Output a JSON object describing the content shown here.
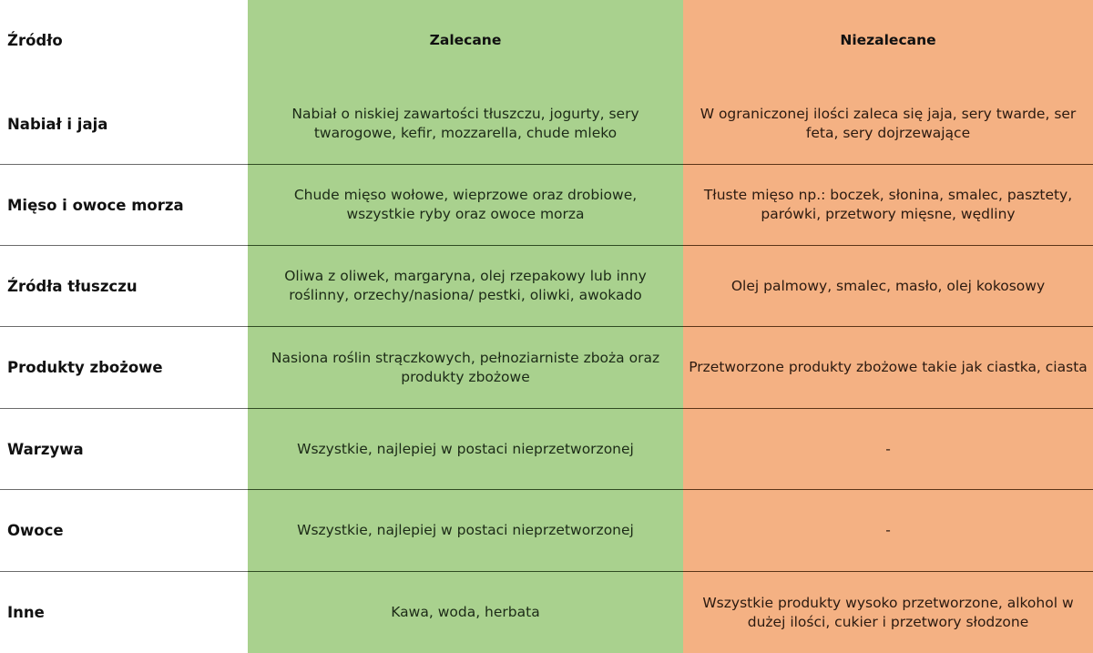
{
  "colors": {
    "source_column_bg": "#ffffff",
    "recommended_column_bg": "#a9d18e",
    "not_recommended_column_bg": "#f4b183"
  },
  "header": {
    "source": "Źródło",
    "recommended": "Zalecane",
    "not_recommended": "Niezalecane"
  },
  "rows": [
    {
      "source": "Nabiał i jaja",
      "recommended": "Nabiał o niskiej zawartości tłuszczu, jogurty, sery twarogowe, kefir, mozzarella, chude mleko",
      "not_recommended": "W ograniczonej ilości zaleca się jaja, sery twarde, ser feta, sery dojrzewające"
    },
    {
      "source": "Mięso i owoce morza",
      "recommended": "Chude mięso wołowe, wieprzowe oraz drobiowe, wszystkie ryby oraz owoce morza",
      "not_recommended": "Tłuste mięso np.: boczek, słonina, smalec, pasztety, parówki, przetwory mięsne, wędliny"
    },
    {
      "source": "Źródła tłuszczu",
      "recommended": "Oliwa z oliwek, margaryna, olej rzepakowy lub inny roślinny, orzechy/nasiona/ pestki, oliwki, awokado",
      "not_recommended": "Olej palmowy, smalec, masło, olej kokosowy"
    },
    {
      "source": "Produkty zbożowe",
      "recommended": "Nasiona roślin strączkowych, pełnoziarniste zboża oraz produkty zbożowe",
      "not_recommended": "Przetworzone produkty zbożowe takie jak ciastka, ciasta"
    },
    {
      "source": "Warzywa",
      "recommended": "Wszystkie, najlepiej w postaci nieprzetworzonej",
      "not_recommended": "-"
    },
    {
      "source": "Owoce",
      "recommended": "Wszystkie, najlepiej w postaci nieprzetworzonej",
      "not_recommended": "-"
    },
    {
      "source": "Inne",
      "recommended": "Kawa, woda, herbata",
      "not_recommended": "Wszystkie produkty wysoko przetworzone, alkohol w dużej ilości, cukier i przetwory słodzone"
    }
  ]
}
